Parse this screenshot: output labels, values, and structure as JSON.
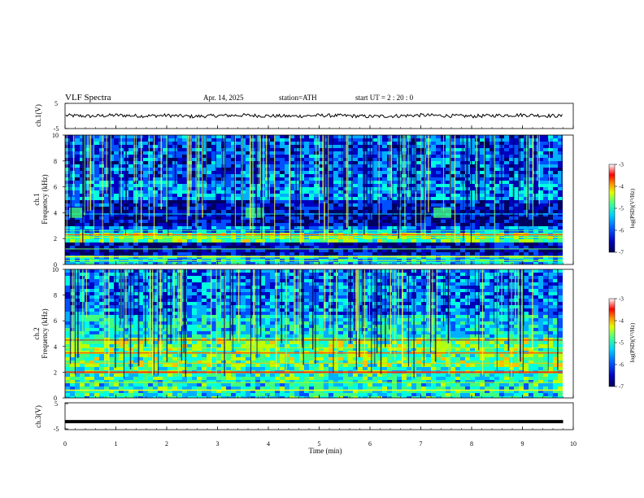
{
  "header": {
    "title": "VLF  Spectra",
    "date": "Apr. 14, 2025",
    "station": "station=ATH",
    "start": "start  UT  =   2  : 20 : 0"
  },
  "chart_data": [
    {
      "type": "line",
      "panel": "ch1-waveform",
      "ylabel": "ch.1(V)",
      "ylim": [
        -5,
        5
      ],
      "yticks": [
        "5",
        "-5"
      ],
      "xlim": [
        0,
        10
      ],
      "x": [
        0.0,
        0.5,
        1.0,
        1.5,
        2.0,
        2.5,
        3.0,
        3.5,
        4.0,
        4.5,
        5.0,
        5.5,
        6.0,
        6.5,
        7.0,
        7.5,
        8.0,
        8.5,
        9.0,
        9.5,
        9.8
      ],
      "y": [
        0.2,
        -0.1,
        0.3,
        0.0,
        0.2,
        -0.2,
        0.1,
        0.3,
        0.0,
        -0.1,
        0.2,
        0.1,
        -0.2,
        0.0,
        0.3,
        0.1,
        -0.1,
        0.2,
        0.4,
        0.1,
        0.0
      ],
      "color": "#000000"
    },
    {
      "type": "heatmap",
      "panel": "ch1-spectrogram",
      "ylabel_line1": "ch.1",
      "ylabel_line2": "Frequency (kHz)",
      "ylim": [
        0,
        10
      ],
      "yticks": [
        "0",
        "2",
        "4",
        "6",
        "8",
        "10"
      ],
      "xlim": [
        0,
        9.8
      ],
      "colorbar": {
        "label": "log(PSD)(V²/Hz)",
        "range": [
          -7,
          -3
        ],
        "ticks": [
          "-3",
          "-4",
          "-5",
          "-6",
          "-7"
        ],
        "colors": [
          "#000080",
          "#0000ff",
          "#0080ff",
          "#00ffff",
          "#80ff80",
          "#ffff00",
          "#ff8000",
          "#ff0000",
          "#ffffff"
        ]
      }
    },
    {
      "type": "heatmap",
      "panel": "ch2-spectrogram",
      "ylabel_line1": "ch.2",
      "ylabel_line2": "Frequency (kHz)",
      "ylim": [
        0,
        10
      ],
      "yticks": [
        "0",
        "2",
        "4",
        "6",
        "8",
        "10"
      ],
      "xlim": [
        0,
        9.8
      ],
      "colorbar": {
        "label": "log(PSD)(V²/Hz)",
        "range": [
          -7,
          -3
        ],
        "ticks": [
          "-3",
          "-4",
          "-5",
          "-6",
          "-7"
        ]
      }
    },
    {
      "type": "line",
      "panel": "ch3-waveform",
      "ylabel": "ch.3(V)",
      "ylim": [
        -5,
        5
      ],
      "yticks": [
        "5",
        "-5"
      ],
      "xlim": [
        0,
        10
      ],
      "x": [
        0,
        9.8
      ],
      "y": [
        -2,
        -2
      ],
      "color": "#000000"
    }
  ],
  "xaxis": {
    "label": "Time  (min)",
    "ticks": [
      "0",
      "1",
      "2",
      "3",
      "4",
      "5",
      "6",
      "7",
      "8",
      "9",
      "10"
    ]
  }
}
